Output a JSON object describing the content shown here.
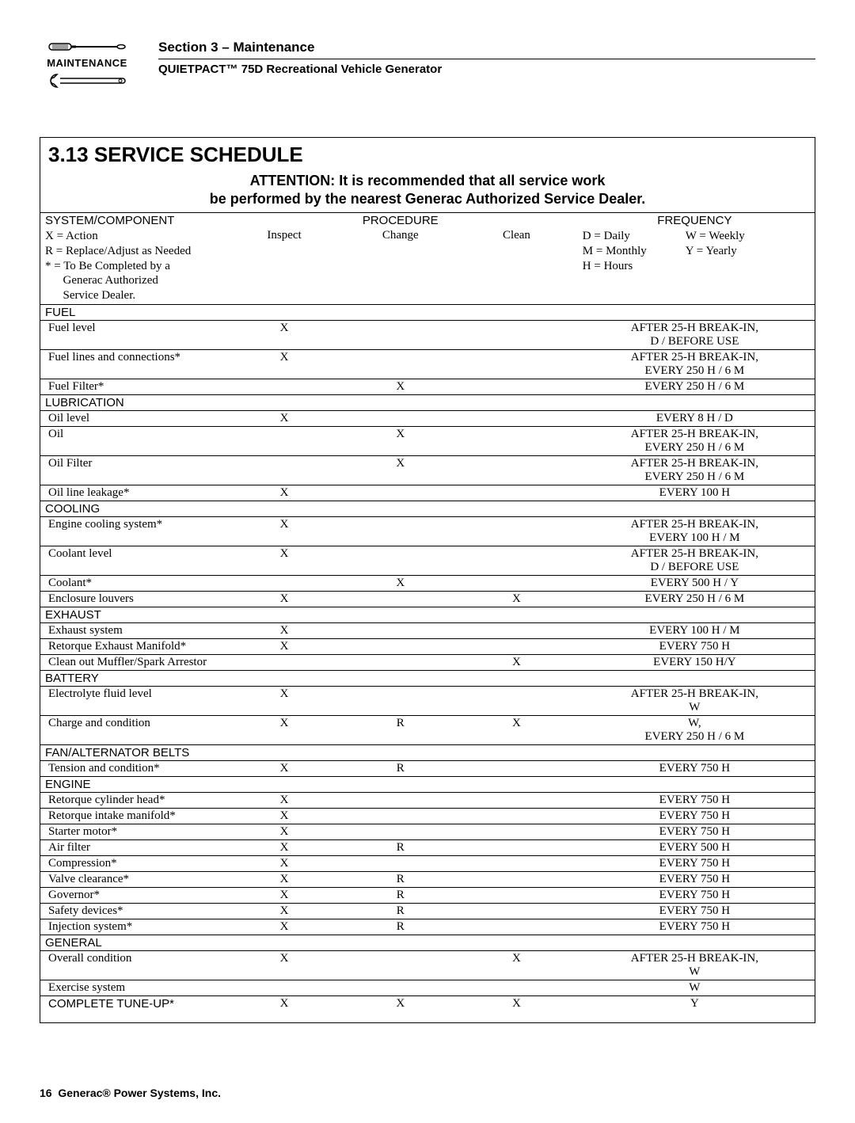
{
  "header": {
    "maintenance_label": "MAINTENANCE",
    "section_line1": "Section 3 – Maintenance",
    "section_line2": "QUIETPACT™ 75D Recreational Vehicle Generator"
  },
  "title": "3.13  SERVICE SCHEDULE",
  "attention_line1": "ATTENTION:  It is recommended that all service work",
  "attention_line2": "be performed by the nearest Generac Authorized Service Dealer.",
  "col_headers": {
    "system": "SYSTEM/COMPONENT",
    "procedure": "PROCEDURE",
    "inspect": "Inspect",
    "change": "Change",
    "clean": "Clean",
    "frequency": "FREQUENCY"
  },
  "legend_sys": [
    "X = Action",
    "R = Replace/Adjust as Needed",
    "* = To Be Completed by a",
    "      Generac Authorized",
    "      Service Dealer."
  ],
  "legend_freq": [
    [
      "D = Daily",
      "W = Weekly"
    ],
    [
      "M = Monthly",
      "Y = Yearly"
    ],
    [
      "H = Hours",
      ""
    ]
  ],
  "sections": [
    {
      "name": "FUEL",
      "rows": [
        {
          "sys": "Fuel level",
          "inspect": "X",
          "change": "",
          "clean": "",
          "freq": "AFTER 25-H BREAK-IN, D / BEFORE USE"
        },
        {
          "sys": "Fuel lines and connections*",
          "inspect": "X",
          "change": "",
          "clean": "",
          "freq": "AFTER 25-H BREAK-IN, EVERY 250 H / 6 M"
        },
        {
          "sys": "Fuel Filter*",
          "inspect": "",
          "change": "X",
          "clean": "",
          "freq": "EVERY 250 H / 6 M"
        }
      ]
    },
    {
      "name": "LUBRICATION",
      "rows": [
        {
          "sys": "Oil level",
          "inspect": "X",
          "change": "",
          "clean": "",
          "freq": "EVERY 8 H / D"
        },
        {
          "sys": "Oil",
          "inspect": "",
          "change": "X",
          "clean": "",
          "freq": "AFTER 25-H BREAK-IN, EVERY 250 H / 6 M"
        },
        {
          "sys": "Oil Filter",
          "inspect": "",
          "change": "X",
          "clean": "",
          "freq": "AFTER 25-H BREAK-IN, EVERY 250 H / 6 M"
        },
        {
          "sys": "Oil line leakage*",
          "inspect": "X",
          "change": "",
          "clean": "",
          "freq": "EVERY 100 H"
        }
      ]
    },
    {
      "name": "COOLING",
      "rows": [
        {
          "sys": "Engine cooling system*",
          "inspect": "X",
          "change": "",
          "clean": "",
          "freq": "AFTER 25-H BREAK-IN, EVERY 100 H / M"
        },
        {
          "sys": "Coolant level",
          "inspect": "X",
          "change": "",
          "clean": "",
          "freq": "AFTER 25-H BREAK-IN, D / BEFORE USE"
        },
        {
          "sys": "Coolant*",
          "inspect": "",
          "change": "X",
          "clean": "",
          "freq": "EVERY 500 H / Y"
        },
        {
          "sys": "Enclosure louvers",
          "inspect": "X",
          "change": "",
          "clean": "X",
          "freq": "EVERY 250 H / 6 M"
        }
      ]
    },
    {
      "name": "EXHAUST",
      "rows": [
        {
          "sys": "Exhaust system",
          "inspect": "X",
          "change": "",
          "clean": "",
          "freq": "EVERY 100 H / M"
        },
        {
          "sys": "Retorque Exhaust Manifold*",
          "inspect": "X",
          "change": "",
          "clean": "",
          "freq": "EVERY 750 H"
        },
        {
          "sys": "Clean out Muffler/Spark Arrestor",
          "inspect": "",
          "change": "",
          "clean": "X",
          "freq": "EVERY 150 H/Y"
        }
      ]
    },
    {
      "name": "BATTERY",
      "rows": [
        {
          "sys": "Electrolyte fluid level",
          "inspect": "X",
          "change": "",
          "clean": "",
          "freq": "AFTER 25-H BREAK-IN, W"
        },
        {
          "sys": "Charge and condition",
          "inspect": "X",
          "change": "R",
          "clean": "X",
          "freq": "W, EVERY 250 H / 6 M"
        }
      ]
    },
    {
      "name": "FAN/ALTERNATOR BELTS",
      "rows": [
        {
          "sys": "Tension and condition*",
          "inspect": "X",
          "change": "R",
          "clean": "",
          "freq": "EVERY 750 H"
        }
      ]
    },
    {
      "name": "ENGINE",
      "rows": [
        {
          "sys": "Retorque cylinder head*",
          "inspect": "X",
          "change": "",
          "clean": "",
          "freq": "EVERY 750 H"
        },
        {
          "sys": "Retorque intake manifold*",
          "inspect": "X",
          "change": "",
          "clean": "",
          "freq": "EVERY 750 H"
        },
        {
          "sys": "Starter motor*",
          "inspect": "X",
          "change": "",
          "clean": "",
          "freq": "EVERY 750 H"
        },
        {
          "sys": "Air filter",
          "inspect": "X",
          "change": "R",
          "clean": "",
          "freq": "EVERY 500 H"
        },
        {
          "sys": "Compression*",
          "inspect": "X",
          "change": "",
          "clean": "",
          "freq": "EVERY 750 H"
        },
        {
          "sys": "Valve clearance*",
          "inspect": "X",
          "change": "R",
          "clean": "",
          "freq": "EVERY 750 H"
        },
        {
          "sys": "Governor*",
          "inspect": "X",
          "change": "R",
          "clean": "",
          "freq": "EVERY 750 H"
        },
        {
          "sys": "Safety devices*",
          "inspect": "X",
          "change": "R",
          "clean": "",
          "freq": "EVERY 750 H"
        },
        {
          "sys": "Injection system*",
          "inspect": "X",
          "change": "R",
          "clean": "",
          "freq": "EVERY 750 H"
        }
      ]
    },
    {
      "name": "GENERAL",
      "rows": [
        {
          "sys": "Overall condition",
          "inspect": "X",
          "change": "",
          "clean": "X",
          "freq": "AFTER 25-H BREAK-IN, W"
        },
        {
          "sys": "Exercise system",
          "inspect": "",
          "change": "",
          "clean": "",
          "freq": "W"
        },
        {
          "sys": "COMPLETE TUNE-UP*",
          "inspect": "X",
          "change": "X",
          "clean": "X",
          "freq": "Y",
          "sans": true
        }
      ]
    }
  ],
  "footer": {
    "page": "16",
    "company": "Generac® Power Systems, Inc."
  }
}
